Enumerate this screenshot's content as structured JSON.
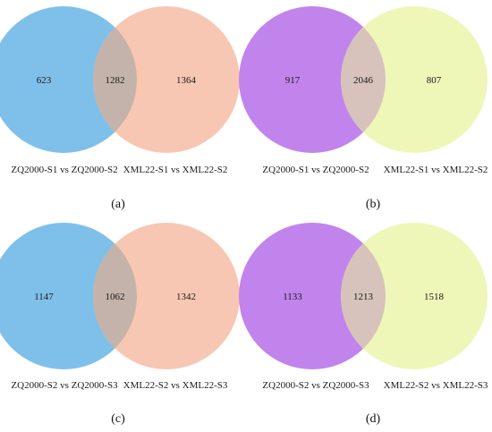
{
  "panels": [
    {
      "id": "a",
      "label": "(a)",
      "left_set": "ZQ2000-S1 vs ZQ2000-S2",
      "right_set": "XML22-S1 vs XML22-S2",
      "left_only": "623",
      "overlap": "1282",
      "right_only": "1364",
      "left_color": "#7fc0ea",
      "right_color": "#f7c7b3",
      "overlap_color": "#c4b3aa"
    },
    {
      "id": "b",
      "label": "(b)",
      "left_set": "ZQ2000-S1 vs ZQ2000-S2",
      "right_set": "XML22-S1 vs XML22-S2",
      "left_only": "917",
      "overlap": "2046",
      "right_only": "807",
      "left_color": "#c184ec",
      "right_color": "#eef7b8",
      "overlap_color": "#d7c3bb"
    },
    {
      "id": "c",
      "label": "(c)",
      "left_set": "ZQ2000-S2 vs ZQ2000-S3",
      "right_set": "XML22-S2 vs XML22-S3",
      "left_only": "1147",
      "overlap": "1062",
      "right_only": "1342",
      "left_color": "#7fc0ea",
      "right_color": "#f7c7b3",
      "overlap_color": "#c4b3aa"
    },
    {
      "id": "d",
      "label": "(d)",
      "left_set": "ZQ2000-S2 vs ZQ2000-S3",
      "right_set": "XML22-S2 vs XML22-S3",
      "left_only": "1133",
      "overlap": "1213",
      "right_only": "1518",
      "left_color": "#c184ec",
      "right_color": "#eef7b8",
      "overlap_color": "#d7c3bb"
    }
  ]
}
